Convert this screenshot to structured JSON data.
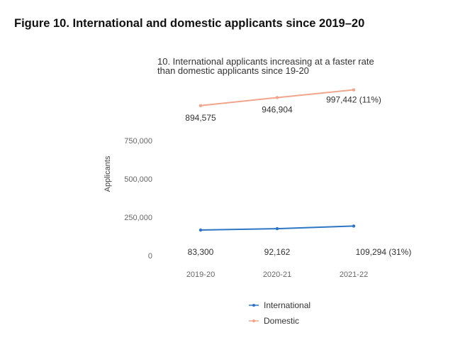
{
  "page": {
    "figure_title": "Figure 10. International and domestic applicants since 2019–20"
  },
  "chart_data": {
    "type": "line",
    "title_lines": [
      "10. International applicants increasing at a faster rate",
      "than domestic applicants since 19-20"
    ],
    "xlabel": "",
    "ylabel": "Applicants",
    "categories": [
      "2019-20",
      "2020-21",
      "2021-22"
    ],
    "y_ticks": [
      {
        "value": 0,
        "label": "0"
      },
      {
        "value": 250000,
        "label": "250,000"
      },
      {
        "value": 500000,
        "label": "500,000"
      },
      {
        "value": 750000,
        "label": "750,000"
      }
    ],
    "ylim": [
      0,
      750000
    ],
    "grid": false,
    "legend_position": "bottom",
    "series": [
      {
        "name": "International",
        "color": "#2e75c4",
        "values": [
          83300,
          92162,
          109294
        ],
        "labels": [
          "83,300",
          "92,162",
          "109,294 (31%)"
        ]
      },
      {
        "name": "Domestic",
        "color": "#f0a58c",
        "values": [
          894575,
          946904,
          997442
        ],
        "labels": [
          "894,575",
          "946,904",
          "997,442 (11%)"
        ]
      }
    ]
  }
}
